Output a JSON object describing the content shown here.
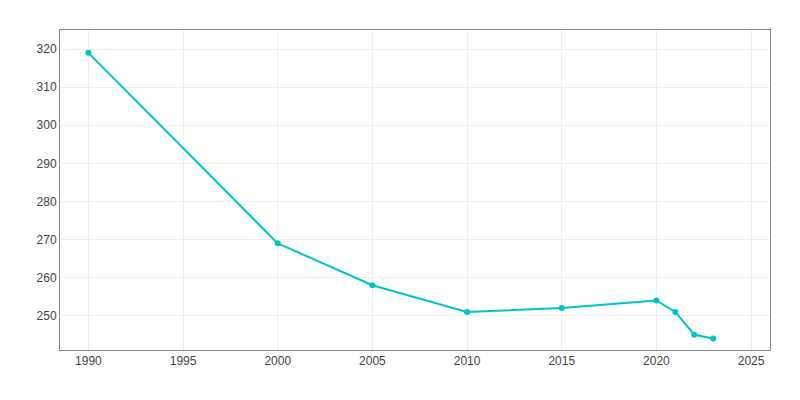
{
  "chart_data": {
    "type": "line",
    "x": [
      1990,
      2000,
      2005,
      2010,
      2015,
      2020,
      2021,
      2022,
      2023
    ],
    "values": [
      319,
      269,
      258,
      251,
      252,
      254,
      251,
      245,
      244
    ],
    "color": "#00C5C5",
    "marker": "circle",
    "xlim": [
      1988.5,
      2026
    ],
    "ylim": [
      241,
      325
    ],
    "xticks": [
      1990,
      1995,
      2000,
      2005,
      2010,
      2015,
      2020,
      2025
    ],
    "yticks": [
      250,
      260,
      270,
      280,
      290,
      300,
      310,
      320
    ],
    "grid": true
  }
}
